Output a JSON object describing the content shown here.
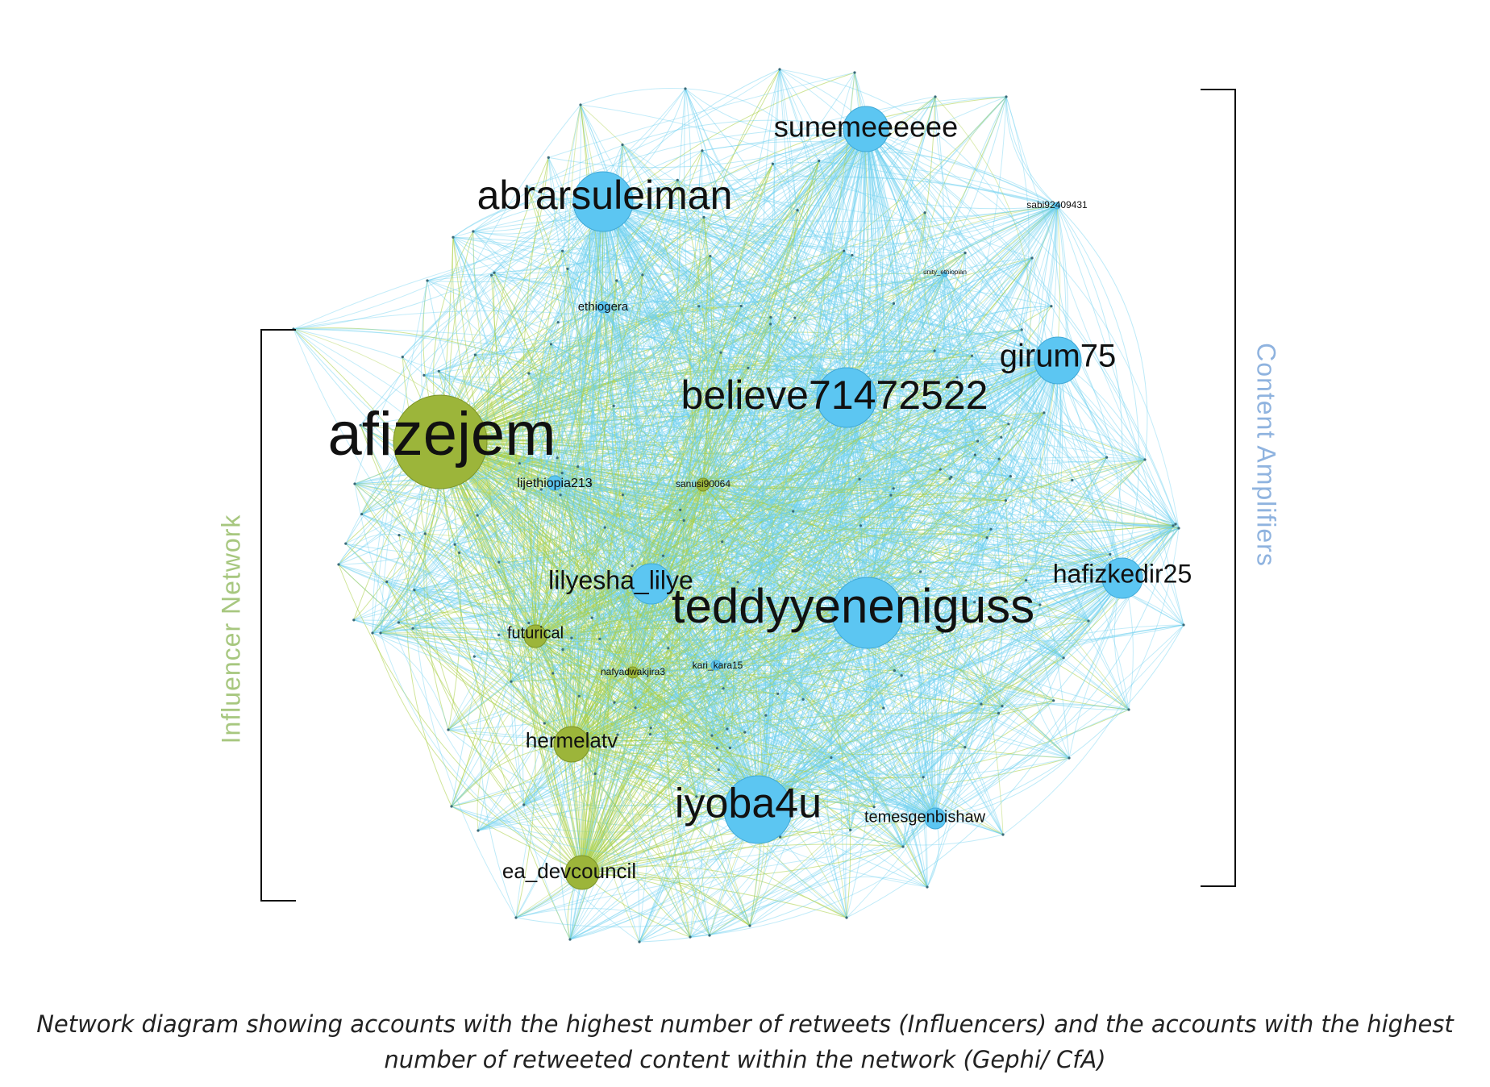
{
  "diagram": {
    "colors": {
      "influencer": "#9cb53a",
      "amplifier": "#5cc6f2",
      "edge_influencer": "#a9cf45",
      "edge_amplifier": "#6cd0ef"
    },
    "nodes": [
      {
        "id": "afizejem",
        "label": "afizejem",
        "group": "influencer",
        "weight": 100
      },
      {
        "id": "teddyyeneniguss",
        "label": "teddyyeneniguss",
        "group": "amplifier",
        "weight": 85
      },
      {
        "id": "abrarsuleiman",
        "label": "abrarsuleiman",
        "group": "amplifier",
        "weight": 70
      },
      {
        "id": "believe71472522",
        "label": "believe71472522",
        "group": "amplifier",
        "weight": 70
      },
      {
        "id": "iyoba4u",
        "label": "iyoba4u",
        "group": "amplifier",
        "weight": 72
      },
      {
        "id": "sunemeeeeee",
        "label": "sunemeeeeee",
        "group": "amplifier",
        "weight": 48
      },
      {
        "id": "girum75",
        "label": "girum75",
        "group": "amplifier",
        "weight": 50
      },
      {
        "id": "hafizkedir25",
        "label": "hafizkedir25",
        "group": "amplifier",
        "weight": 40
      },
      {
        "id": "lilyesha_lilye",
        "label": "lilyesha_lilye",
        "group": "amplifier",
        "weight": 42
      },
      {
        "id": "hermelatv",
        "label": "hermelatv",
        "group": "influencer",
        "weight": 42
      },
      {
        "id": "ea_devcouncil",
        "label": "ea_devcouncil",
        "group": "influencer",
        "weight": 40
      },
      {
        "id": "futurical",
        "label": "futurical",
        "group": "influencer",
        "weight": 28
      },
      {
        "id": "temesgenbishaw",
        "label": "temesgenbishaw",
        "group": "amplifier",
        "weight": 26
      },
      {
        "id": "lijethiopia213",
        "label": "lijethiopia213",
        "group": "amplifier",
        "weight": 16
      },
      {
        "id": "sanusi90064",
        "label": "sanusi90064",
        "group": "influencer",
        "weight": 14
      },
      {
        "id": "ethiogera",
        "label": "ethiogera",
        "group": "amplifier",
        "weight": 12
      },
      {
        "id": "sabi92409431",
        "label": "sabi92409431",
        "group": "amplifier",
        "weight": 8
      },
      {
        "id": "nafyadwakjira3",
        "label": "nafyadwakjira3",
        "group": "influencer",
        "weight": 12
      },
      {
        "id": "kari_kara15",
        "label": "kari_kara15",
        "group": "amplifier",
        "weight": 10
      },
      {
        "id": "unity_ethiopian",
        "label": "unity_ethiopian",
        "group": "amplifier",
        "weight": 4
      }
    ]
  },
  "labels": {
    "influencer_network": "Influencer Network",
    "content_amplifiers": "Content Amplifiers"
  },
  "caption": {
    "part1": "Network diagram showing accounts with the highest number of retweets (Influencers) and the accounts",
    "part2": " with the highest number of retweeted content within the  network",
    "part3": "  (Gephi/ CfA)"
  }
}
